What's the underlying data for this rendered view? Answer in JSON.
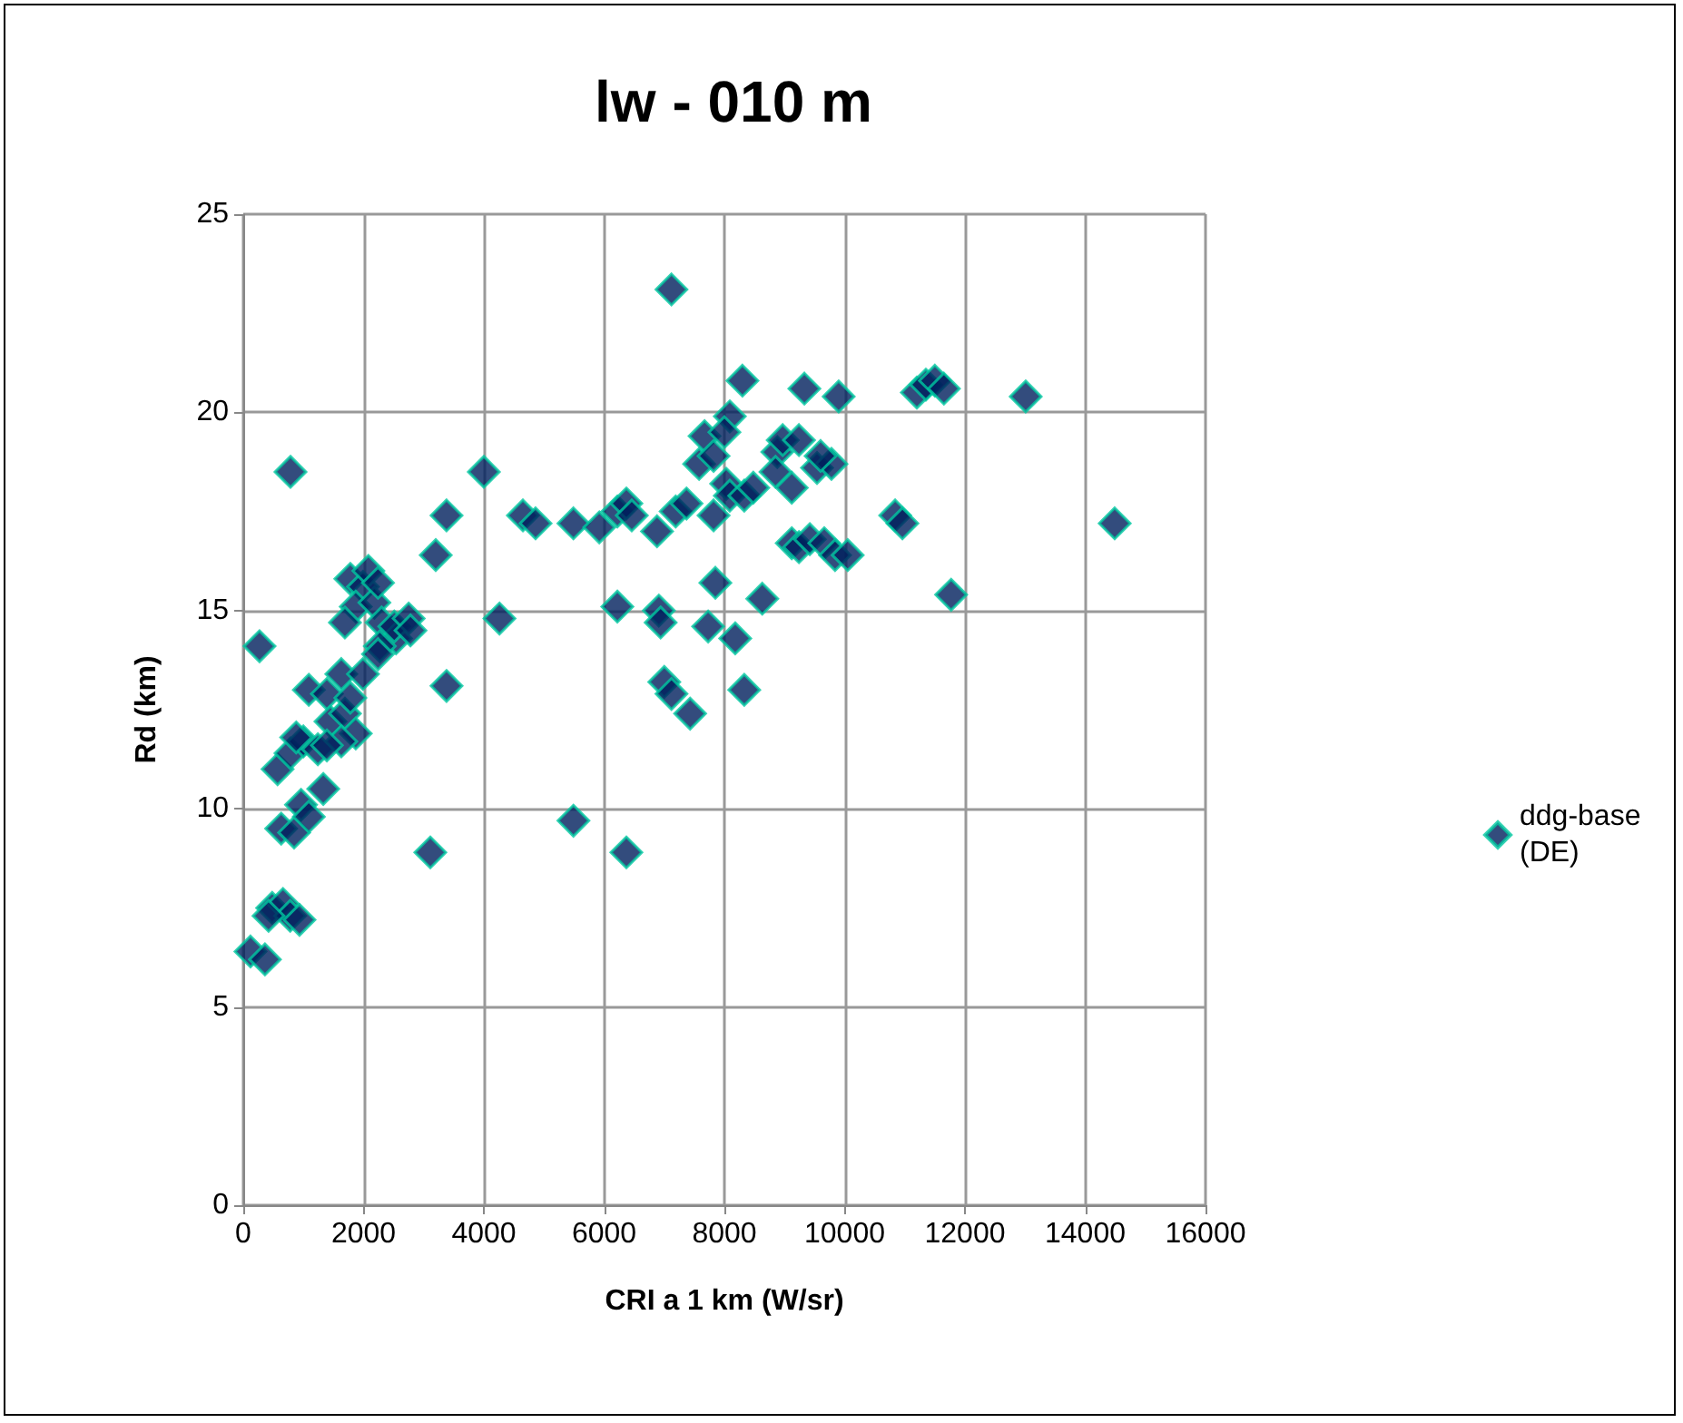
{
  "chart_data": {
    "type": "scatter",
    "title": "lw - 010 m",
    "xlabel": "CRI a 1 km (W/sr)",
    "ylabel": "Rd (km)",
    "xlim": [
      0,
      16000
    ],
    "xticks": [
      0,
      2000,
      4000,
      6000,
      8000,
      10000,
      12000,
      14000,
      16000
    ],
    "ylim": [
      0,
      25
    ],
    "yticks": [
      0,
      5,
      10,
      15,
      20,
      25
    ],
    "grid": true,
    "legend": "right",
    "marker": "diamond",
    "series": [
      {
        "name": "ddg-base (DE)",
        "color": "#001f5c",
        "x": [
          270,
          785,
          120,
          360,
          480,
          660,
          780,
          935,
          420,
          630,
          845,
          960,
          1090,
          1330,
          570,
          785,
          1000,
          1240,
          880,
          1090,
          1390,
          1630,
          1450,
          1690,
          1780,
          1990,
          2080,
          1870,
          1690,
          2180,
          2300,
          2540,
          2270,
          2510,
          2750,
          2780,
          2240,
          2240,
          1990,
          1780,
          1870,
          1630,
          1390,
          3200,
          3380,
          3380,
          3110,
          4000,
          4260,
          4650,
          4860,
          5490,
          5490,
          5920,
          6220,
          6370,
          6460,
          6220,
          6370,
          6880,
          6910,
          6940,
          7000,
          7120,
          7120,
          7190,
          7370,
          7430,
          7670,
          7580,
          7820,
          7820,
          7730,
          7850,
          8030,
          8090,
          8090,
          8000,
          8180,
          8300,
          8330,
          8330,
          8480,
          8630,
          8880,
          8970,
          8850,
          9120,
          9120,
          9240,
          9420,
          9240,
          9330,
          9540,
          9780,
          9660,
          9840,
          10050,
          9900,
          9600,
          10840,
          10960,
          11200,
          11350,
          11500,
          11650,
          11770,
          13010,
          14490
        ],
        "values": [
          14.1,
          18.5,
          6.4,
          6.2,
          7.5,
          7.6,
          7.3,
          7.2,
          7.3,
          9.5,
          9.4,
          10.1,
          9.8,
          10.5,
          11.0,
          11.4,
          11.7,
          11.5,
          11.8,
          13.0,
          12.9,
          13.4,
          12.2,
          12.4,
          15.8,
          15.6,
          16.0,
          15.1,
          14.7,
          15.2,
          14.7,
          14.3,
          14.1,
          14.6,
          14.8,
          14.5,
          15.7,
          13.9,
          13.4,
          12.8,
          11.9,
          11.7,
          11.6,
          16.4,
          17.4,
          13.1,
          8.9,
          18.5,
          14.8,
          17.4,
          17.2,
          17.2,
          9.7,
          17.1,
          17.5,
          17.7,
          17.4,
          15.1,
          8.9,
          17.0,
          15.0,
          14.7,
          13.2,
          12.9,
          23.1,
          17.5,
          17.7,
          12.4,
          19.4,
          18.7,
          18.9,
          17.4,
          14.6,
          15.7,
          18.2,
          17.9,
          19.9,
          19.5,
          14.3,
          20.8,
          13.0,
          17.9,
          18.1,
          15.3,
          19.0,
          19.3,
          18.5,
          18.1,
          16.7,
          16.6,
          16.8,
          19.3,
          20.6,
          18.6,
          18.7,
          16.7,
          16.4,
          16.4,
          20.4,
          18.9,
          17.4,
          17.2,
          20.5,
          20.7,
          20.8,
          20.6,
          15.4,
          20.4,
          17.2
        ]
      }
    ]
  }
}
